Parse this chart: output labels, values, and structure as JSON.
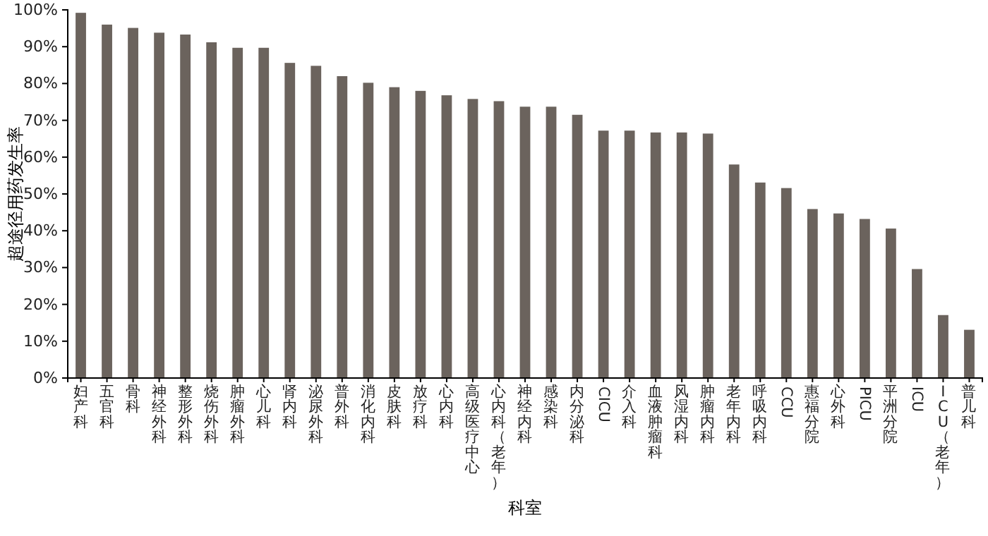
{
  "chart_data": {
    "type": "bar",
    "xlabel": "科室",
    "ylabel": "超途径用药发生率",
    "categories": [
      "妇产科",
      "五官科",
      "骨科",
      "神经外科",
      "整形外科",
      "烧伤外科",
      "肿瘤外科",
      "心儿科",
      "肾内科",
      "泌尿外科",
      "普外科",
      "消化内科",
      "皮肤科",
      "放疗科",
      "心内科",
      "高级医疗中心",
      "心内科（老年）",
      "神经内科",
      "感染科",
      "内分泌科",
      "CICU",
      "介入科",
      "血液肿瘤科",
      "风湿内科",
      "肿瘤内科",
      "老年内科",
      "呼吸内科",
      "CCU",
      "惠福分院",
      "心外科",
      "PICU",
      "平洲分院",
      "ICU",
      "ICU（老年）",
      "普儿科"
    ],
    "values": [
      99.2,
      96.0,
      95.1,
      93.8,
      93.3,
      91.2,
      89.7,
      89.7,
      85.6,
      84.8,
      82.0,
      80.2,
      79.0,
      78.0,
      76.8,
      75.8,
      75.2,
      73.7,
      73.7,
      71.5,
      67.2,
      67.2,
      66.7,
      66.7,
      66.4,
      58.0,
      53.1,
      51.6,
      45.9,
      44.7,
      43.2,
      40.6,
      29.6,
      17.1,
      13.1
    ],
    "color": "#6b635d",
    "ylim": [
      0,
      100
    ],
    "yticks": [
      {
        "value": 0,
        "label": "0%"
      },
      {
        "value": 10,
        "label": "10%"
      },
      {
        "value": 20,
        "label": "20%"
      },
      {
        "value": 30,
        "label": "30%"
      },
      {
        "value": 40,
        "label": "40%"
      },
      {
        "value": 50,
        "label": "50%"
      },
      {
        "value": 60,
        "label": "60%"
      },
      {
        "value": 70,
        "label": "70%"
      },
      {
        "value": 80,
        "label": "80%"
      },
      {
        "value": 90,
        "label": "90%"
      },
      {
        "value": 100,
        "label": "100%"
      }
    ]
  }
}
